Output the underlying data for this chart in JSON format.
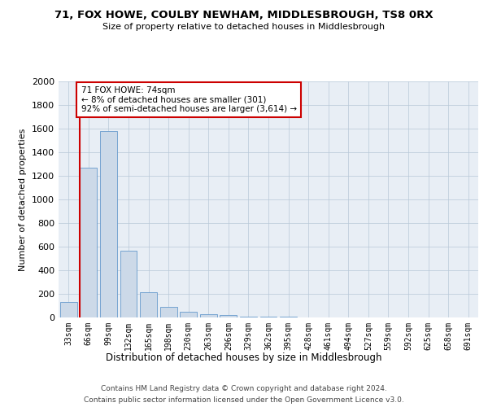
{
  "title": "71, FOX HOWE, COULBY NEWHAM, MIDDLESBROUGH, TS8 0RX",
  "subtitle": "Size of property relative to detached houses in Middlesbrough",
  "xlabel": "Distribution of detached houses by size in Middlesbrough",
  "ylabel": "Number of detached properties",
  "categories": [
    "33sqm",
    "66sqm",
    "99sqm",
    "132sqm",
    "165sqm",
    "198sqm",
    "230sqm",
    "263sqm",
    "296sqm",
    "329sqm",
    "362sqm",
    "395sqm",
    "428sqm",
    "461sqm",
    "494sqm",
    "527sqm",
    "559sqm",
    "592sqm",
    "625sqm",
    "658sqm",
    "691sqm"
  ],
  "values": [
    130,
    1270,
    1580,
    565,
    215,
    90,
    45,
    25,
    20,
    10,
    5,
    5,
    0,
    0,
    0,
    0,
    0,
    0,
    0,
    0,
    0
  ],
  "bar_color": "#ccd9e8",
  "bar_edge_color": "#6699cc",
  "highlight_color": "#cc0000",
  "highlight_bar_index": 1,
  "annotation_text": "71 FOX HOWE: 74sqm\n← 8% of detached houses are smaller (301)\n92% of semi-detached houses are larger (3,614) →",
  "annotation_box_color": "#ffffff",
  "annotation_box_edge_color": "#cc0000",
  "ylim": [
    0,
    2000
  ],
  "yticks": [
    0,
    200,
    400,
    600,
    800,
    1000,
    1200,
    1400,
    1600,
    1800,
    2000
  ],
  "footer_line1": "Contains HM Land Registry data © Crown copyright and database right 2024.",
  "footer_line2": "Contains public sector information licensed under the Open Government Licence v3.0.",
  "bg_color": "#ffffff",
  "axes_bg_color": "#e8eef5",
  "grid_color": "#b8c8d8"
}
